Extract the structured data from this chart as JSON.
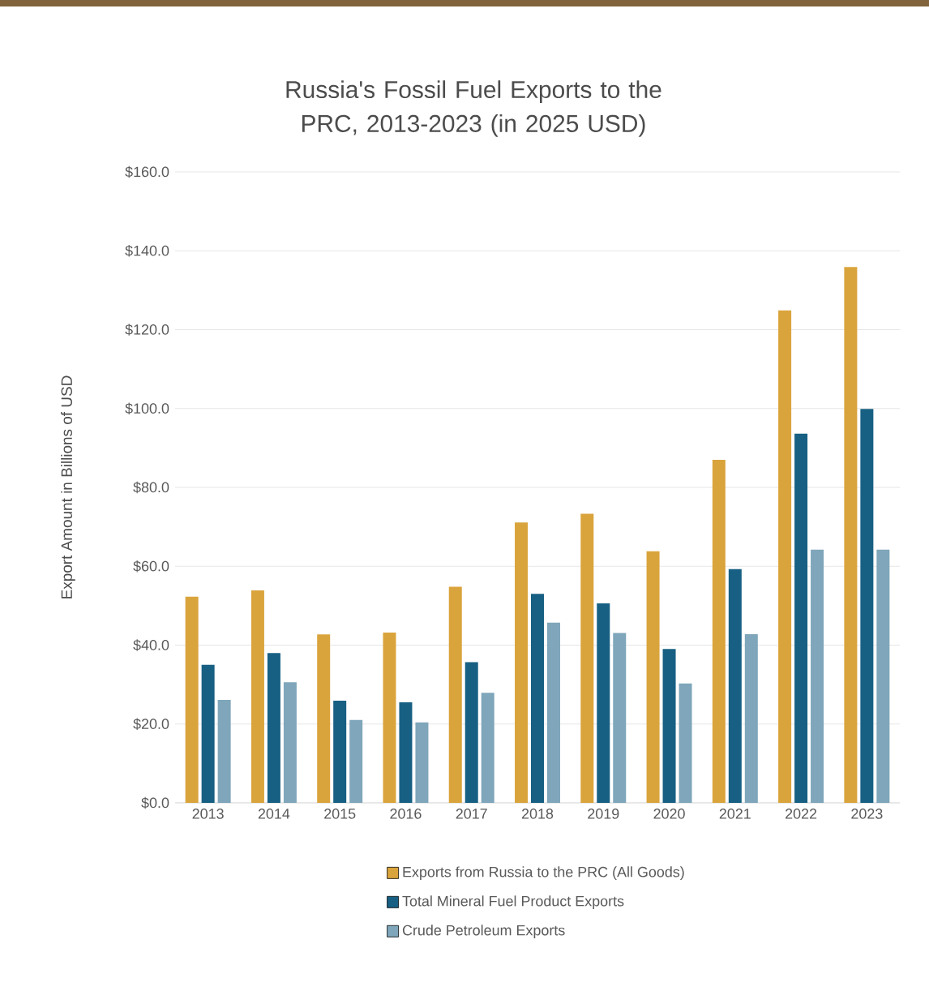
{
  "chart_data": {
    "type": "bar",
    "title": "Russia's Fossil Fuel Exports to the PRC, 2013-2023 (in 2025 USD)",
    "ylabel": "Export Amount in Billions of USD",
    "categories": [
      "2013",
      "2014",
      "2015",
      "2016",
      "2017",
      "2018",
      "2019",
      "2020",
      "2021",
      "2022",
      "2023"
    ],
    "series": [
      {
        "name": "Exports from Russia to the PRC (All Goods)",
        "color": "#daa43c",
        "values": [
          52.3,
          53.9,
          42.7,
          43.2,
          54.8,
          71.1,
          73.3,
          63.8,
          87.0,
          124.9,
          135.9
        ]
      },
      {
        "name": "Total Mineral Fuel Product Exports",
        "color": "#176083",
        "values": [
          35.0,
          38.0,
          25.9,
          25.5,
          35.7,
          53.0,
          50.6,
          39.0,
          59.3,
          93.6,
          99.9
        ]
      },
      {
        "name": "Crude Petroleum Exports",
        "color": "#7fa6ba",
        "values": [
          26.1,
          30.6,
          21.0,
          20.4,
          27.9,
          45.7,
          43.1,
          30.3,
          42.8,
          64.2,
          64.2
        ]
      }
    ],
    "ylim": [
      0,
      160
    ],
    "yticks": [
      {
        "value": 0,
        "label": "$0.0"
      },
      {
        "value": 20,
        "label": "$20.0"
      },
      {
        "value": 40,
        "label": "$40.0"
      },
      {
        "value": 60,
        "label": "$60.0"
      },
      {
        "value": 80,
        "label": "$80.0"
      },
      {
        "value": 100,
        "label": "$100.0"
      },
      {
        "value": 120,
        "label": "$120.0"
      },
      {
        "value": 140,
        "label": "$140.0"
      },
      {
        "value": 160,
        "label": "$160.0"
      }
    ],
    "grid": "y",
    "legend": "bottom"
  }
}
